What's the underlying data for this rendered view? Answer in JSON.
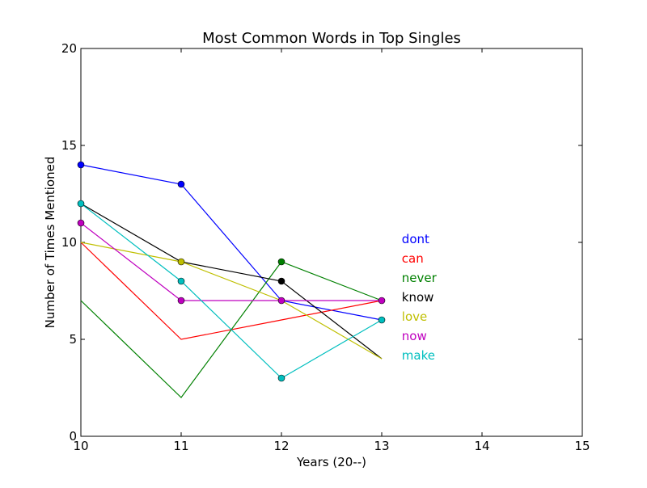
{
  "chart_data": {
    "type": "line",
    "title": "Most Common Words in Top Singles",
    "xlabel": "Years (20--)",
    "ylabel": "Number of Times Mentioned",
    "xlim": [
      10,
      15
    ],
    "ylim": [
      0,
      20
    ],
    "xticks": [
      10,
      11,
      12,
      13,
      14,
      15
    ],
    "yticks": [
      0,
      5,
      10,
      15,
      20
    ],
    "grid": false,
    "x": [
      10,
      11,
      12,
      13
    ],
    "series": [
      {
        "name": "dont",
        "color": "#0000ff",
        "values": [
          14,
          13,
          7,
          6
        ],
        "markers": [
          true,
          true,
          false,
          false
        ]
      },
      {
        "name": "can",
        "color": "#ff0000",
        "values": [
          10,
          5,
          6,
          7
        ],
        "markers": [
          false,
          false,
          false,
          false
        ]
      },
      {
        "name": "never",
        "color": "#008000",
        "values": [
          7,
          2,
          9,
          7
        ],
        "markers": [
          false,
          false,
          true,
          false
        ]
      },
      {
        "name": "know",
        "color": "#000000",
        "values": [
          12,
          9,
          8,
          4
        ],
        "markers": [
          false,
          false,
          true,
          false
        ]
      },
      {
        "name": "love",
        "color": "#bfbf00",
        "values": [
          10,
          9,
          7,
          4
        ],
        "markers": [
          false,
          true,
          false,
          false
        ]
      },
      {
        "name": "now",
        "color": "#bf00bf",
        "values": [
          11,
          7,
          7,
          7
        ],
        "markers": [
          true,
          true,
          true,
          true
        ]
      },
      {
        "name": "make",
        "color": "#00bfbf",
        "values": [
          12,
          8,
          3,
          6
        ],
        "markers": [
          true,
          true,
          true,
          true
        ]
      }
    ]
  }
}
